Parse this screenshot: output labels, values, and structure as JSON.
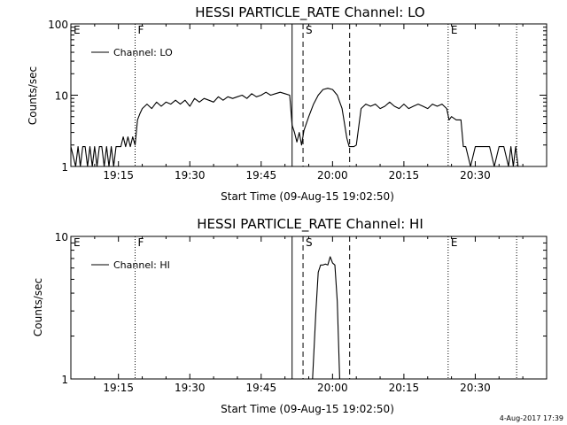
{
  "footer_timestamp": "4-Aug-2017 17:39",
  "colors": {
    "background": "#ffffff",
    "foreground": "#000000"
  },
  "chart_data": [
    {
      "type": "line",
      "title": "HESSI PARTICLE_RATE Channel: LO",
      "xlabel": "Start Time (09-Aug-15 19:02:50)",
      "ylabel": "Counts/sec",
      "y_scale": "log",
      "ylim": [
        1,
        100
      ],
      "xlim": [
        5.0,
        105.0
      ],
      "yticks": [
        {
          "v": 1,
          "label": "1"
        },
        {
          "v": 10,
          "label": "10"
        },
        {
          "v": 100,
          "label": "100"
        }
      ],
      "xticks": [
        {
          "v": 15,
          "label": "19:15"
        },
        {
          "v": 30,
          "label": "19:30"
        },
        {
          "v": 45,
          "label": "19:45"
        },
        {
          "v": 60,
          "label": "20:00"
        },
        {
          "v": 75,
          "label": "20:15"
        },
        {
          "v": 90,
          "label": "20:30"
        }
      ],
      "legend": {
        "position": "top-left",
        "entries": [
          "Channel: LO"
        ]
      },
      "grid": false,
      "markers": [
        {
          "label": "E",
          "x": 5.0,
          "style": "dotted"
        },
        {
          "label": "F",
          "x": 18.5,
          "style": "dotted"
        },
        {
          "label": "",
          "x": 51.5,
          "style": "solid"
        },
        {
          "label": "S",
          "x": 53.8,
          "style": "dashed"
        },
        {
          "label": "",
          "x": 63.6,
          "style": "dashed"
        },
        {
          "label": "E",
          "x": 84.3,
          "style": "dotted"
        },
        {
          "label": "",
          "x": 98.7,
          "style": "dotted"
        }
      ],
      "series": [
        {
          "x": [
            5.0,
            6.0,
            6.5,
            7.0,
            7.5,
            8.0,
            8.5,
            9.0,
            9.5,
            10.0,
            10.5,
            11.0,
            11.5,
            12.0,
            12.5,
            13.0,
            13.5,
            14.0,
            14.5,
            15.0,
            15.5,
            16.0,
            16.5,
            17.0,
            17.5,
            18.0,
            18.5,
            19.0,
            19.5,
            20.0,
            21.0,
            22.0,
            23.0,
            24.0,
            25.0,
            26.0,
            27.0,
            28.0,
            29.0,
            30.0,
            31.0,
            32.0,
            33.0,
            34.0,
            35.0,
            36.0,
            37.0,
            38.0,
            39.0,
            40.0,
            41.0,
            42.0,
            43.0,
            44.0,
            45.0,
            46.0,
            47.0,
            48.0,
            49.0,
            50.0,
            51.0,
            51.5,
            52.0,
            52.5,
            53.0,
            53.5,
            54.0,
            55.0,
            56.0,
            57.0,
            58.0,
            59.0,
            60.0,
            61.0,
            62.0,
            63.0,
            63.5,
            64.0,
            64.5,
            65.0,
            66.0,
            67.0,
            68.0,
            69.0,
            70.0,
            71.0,
            72.0,
            73.0,
            74.0,
            75.0,
            76.0,
            77.0,
            78.0,
            79.0,
            80.0,
            81.0,
            82.0,
            83.0,
            84.0,
            84.5,
            85.0,
            86.0,
            87.0,
            87.5,
            88.0,
            89.0,
            90.0,
            91.0,
            92.0,
            93.0,
            94.0,
            95.0,
            96.0,
            97.0,
            97.5,
            98.0,
            98.5,
            99.0
          ],
          "y": [
            1.9,
            1.0,
            1.9,
            1.0,
            1.9,
            1.9,
            1.0,
            1.9,
            1.0,
            1.9,
            1.0,
            1.9,
            1.9,
            1.0,
            1.9,
            1.0,
            1.9,
            1.0,
            1.9,
            1.9,
            1.9,
            2.6,
            1.9,
            2.6,
            1.9,
            2.6,
            2.0,
            4.5,
            5.5,
            6.5,
            7.5,
            6.5,
            8.0,
            7.0,
            8.0,
            7.5,
            8.5,
            7.5,
            8.5,
            7.0,
            9.0,
            8.0,
            9.0,
            8.5,
            8.0,
            9.5,
            8.5,
            9.5,
            9.0,
            9.5,
            10.0,
            9.0,
            10.5,
            9.5,
            10.0,
            11.0,
            10.0,
            10.5,
            11.0,
            10.5,
            10.0,
            3.8,
            3.0,
            2.2,
            3.0,
            2.0,
            3.2,
            5.0,
            7.5,
            10.0,
            12.0,
            12.5,
            12.0,
            10.0,
            6.5,
            2.5,
            1.9,
            1.9,
            1.9,
            2.0,
            6.5,
            7.5,
            7.0,
            7.5,
            6.5,
            7.0,
            8.0,
            7.0,
            6.5,
            7.5,
            6.5,
            7.0,
            7.5,
            7.0,
            6.5,
            7.5,
            7.0,
            7.5,
            6.5,
            4.5,
            5.0,
            4.5,
            4.5,
            1.9,
            1.9,
            1.0,
            1.9,
            1.9,
            1.9,
            1.9,
            1.0,
            1.9,
            1.9,
            1.0,
            1.9,
            1.0,
            1.9,
            1.0
          ]
        }
      ]
    },
    {
      "type": "line",
      "title": "HESSI PARTICLE_RATE Channel: HI",
      "xlabel": "Start Time (09-Aug-15 19:02:50)",
      "ylabel": "Counts/sec",
      "y_scale": "log",
      "ylim": [
        1,
        10
      ],
      "xlim": [
        5.0,
        105.0
      ],
      "yticks": [
        {
          "v": 1,
          "label": "1"
        },
        {
          "v": 10,
          "label": "10"
        }
      ],
      "xticks": [
        {
          "v": 15,
          "label": "19:15"
        },
        {
          "v": 30,
          "label": "19:30"
        },
        {
          "v": 45,
          "label": "19:45"
        },
        {
          "v": 60,
          "label": "20:00"
        },
        {
          "v": 75,
          "label": "20:15"
        },
        {
          "v": 90,
          "label": "20:30"
        }
      ],
      "legend": {
        "position": "top-left",
        "entries": [
          "Channel: HI"
        ]
      },
      "grid": false,
      "markers": [
        {
          "label": "E",
          "x": 5.0,
          "style": "dotted"
        },
        {
          "label": "F",
          "x": 18.5,
          "style": "dotted"
        },
        {
          "label": "",
          "x": 51.5,
          "style": "solid"
        },
        {
          "label": "S",
          "x": 53.8,
          "style": "dashed"
        },
        {
          "label": "",
          "x": 63.6,
          "style": "dashed"
        },
        {
          "label": "E",
          "x": 84.3,
          "style": "dotted"
        },
        {
          "label": "",
          "x": 98.7,
          "style": "dotted"
        }
      ],
      "series": [
        {
          "x": [
            55.8,
            56.5,
            57.0,
            57.5,
            58.0,
            58.5,
            59.0,
            59.5,
            60.0,
            60.5,
            61.0,
            61.5
          ],
          "y": [
            1.0,
            3.0,
            5.6,
            6.3,
            6.3,
            6.4,
            6.3,
            7.2,
            6.5,
            6.3,
            3.5,
            1.0
          ]
        }
      ]
    }
  ]
}
